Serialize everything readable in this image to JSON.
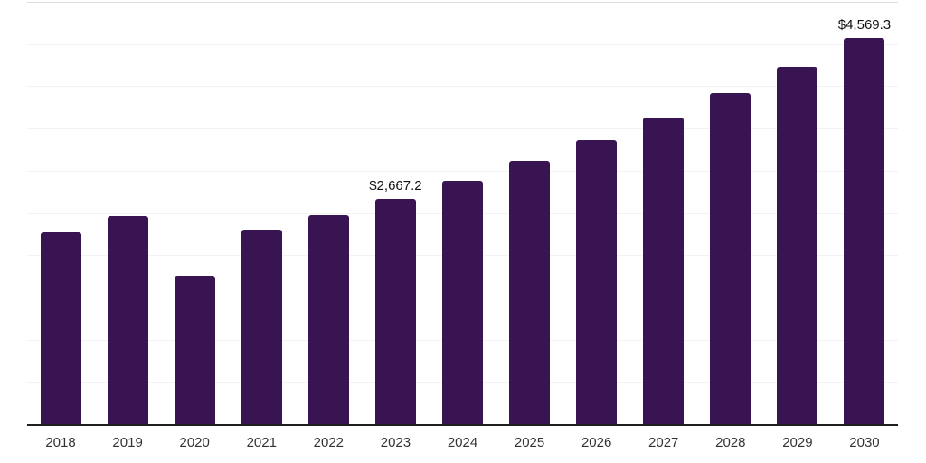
{
  "chart_data": {
    "type": "bar",
    "title": "",
    "xlabel": "",
    "ylabel": "",
    "categories": [
      "2018",
      "2019",
      "2020",
      "2021",
      "2022",
      "2023",
      "2024",
      "2025",
      "2026",
      "2027",
      "2028",
      "2029",
      "2030"
    ],
    "values": [
      2272,
      2462,
      1752,
      2298,
      2468,
      2667.2,
      2880.5,
      3110.9,
      3359.7,
      3628.4,
      3918.6,
      4232.0,
      4569.3
    ],
    "point_labels": [
      "",
      "",
      "",
      "",
      "",
      "$2,667.2",
      "",
      "",
      "",
      "",
      "",
      "",
      "$4,569.3"
    ],
    "ylim": [
      0,
      5000
    ],
    "gridline_interval": 500,
    "grid": "horizontal",
    "legend_position": "none",
    "y_tick_labels_visible": false,
    "colors": {
      "bar": "#381452",
      "axis_line": "#1f1f1f",
      "gridline": "#f2f2f2",
      "gridline_top": "#dddddd",
      "x_tick_label": "#333333",
      "value_label": "#111111",
      "background": "#ffffff"
    }
  }
}
